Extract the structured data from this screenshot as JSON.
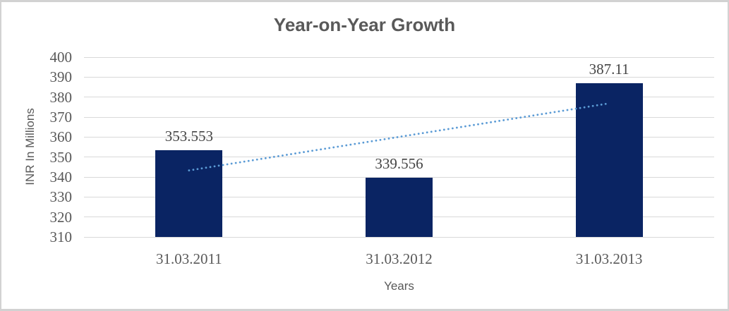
{
  "window": {
    "background": "#ffffff",
    "border_color": "#d2d2d2"
  },
  "chart_data": {
    "type": "bar",
    "title": "Year-on-Year Growth",
    "xlabel": "Years",
    "ylabel": "INR In Millions",
    "categories": [
      "31.03.2011",
      "31.03.2012",
      "31.03.2013"
    ],
    "values": [
      353.553,
      339.556,
      387.11
    ],
    "data_labels": [
      "353.553",
      "339.556",
      "387.11"
    ],
    "ylim": [
      310,
      400
    ],
    "yticks": [
      400,
      390,
      380,
      370,
      360,
      350,
      340,
      330,
      320,
      310
    ],
    "grid": true,
    "legend": "none",
    "trendline": {
      "type": "linear",
      "style": "dotted"
    },
    "colors": {
      "bar": "#0a2463",
      "trendline": "#5b9bd5",
      "gridline": "#d9d9d9",
      "title": "#595959",
      "tick_label": "#595959",
      "data_label": "#444444"
    }
  }
}
